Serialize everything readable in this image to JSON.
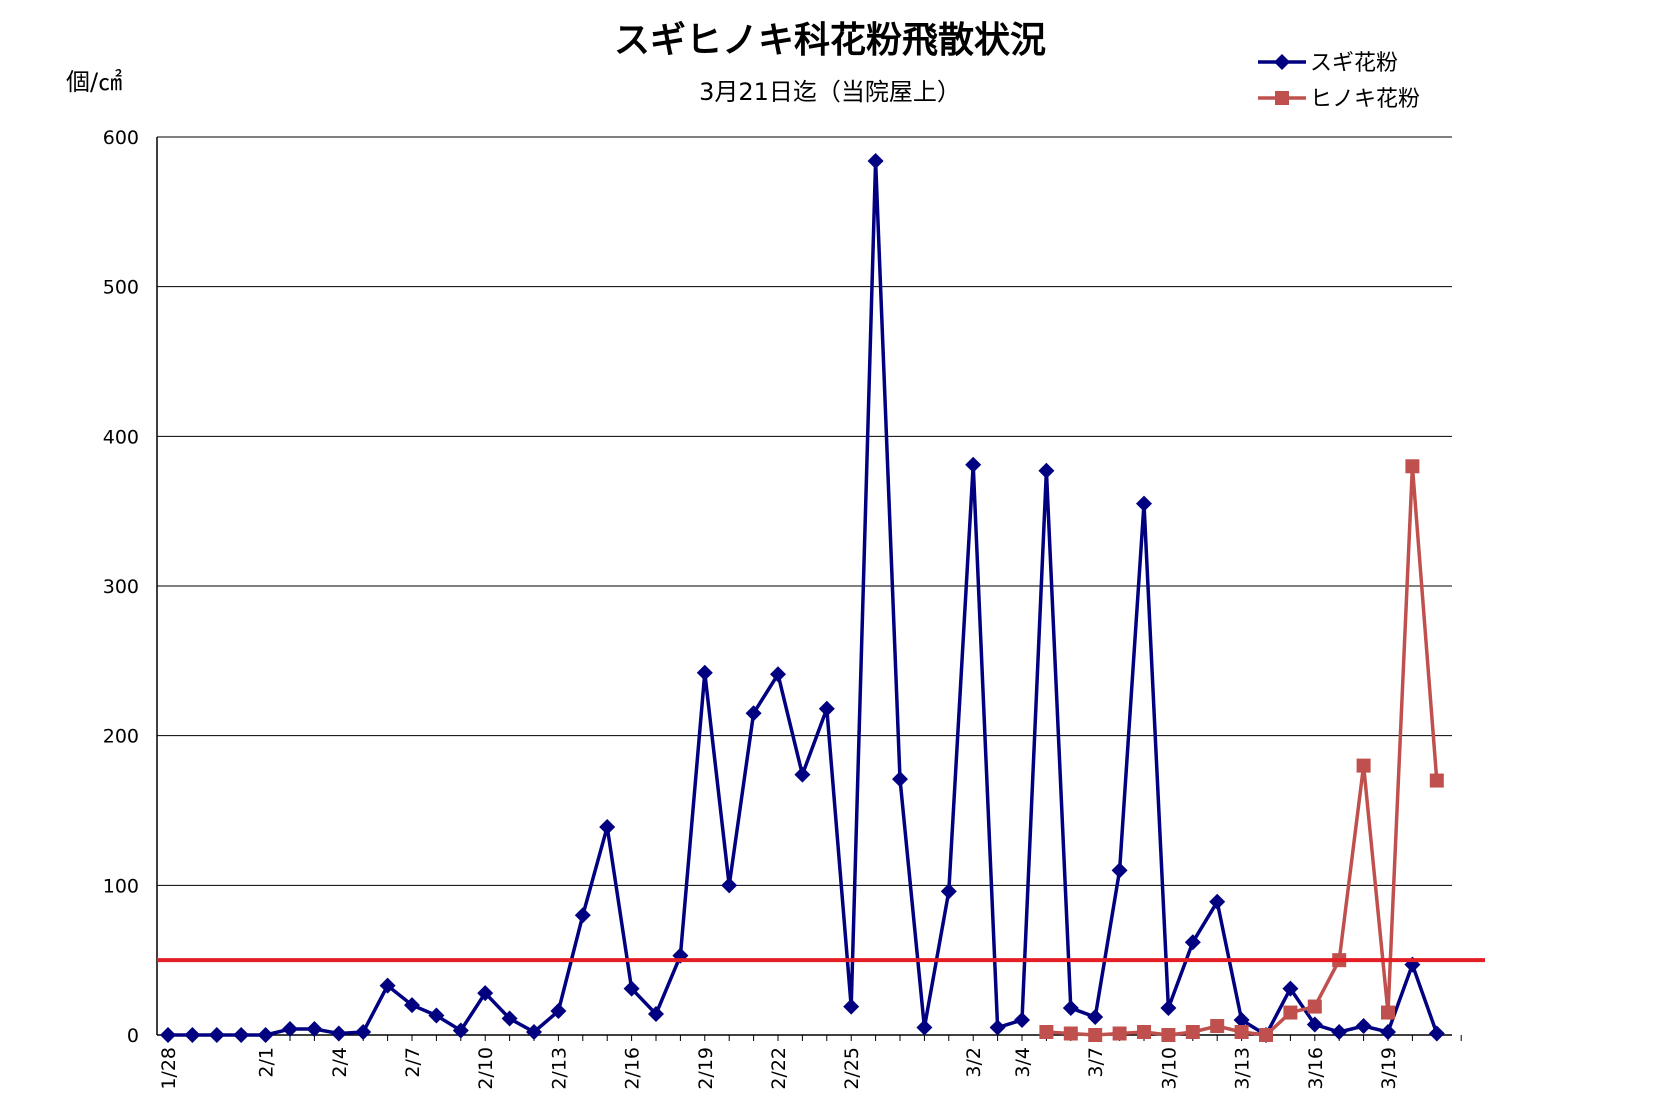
{
  "chart_data": {
    "type": "line",
    "title": "スギヒノキ科花粉飛散状況",
    "subtitle": "3月21日迄（当院屋上）",
    "ylabel": "個/㎠",
    "ylim": [
      0,
      600
    ],
    "yticks": [
      0,
      100,
      200,
      300,
      400,
      500,
      600
    ],
    "xlabels": [
      "1/28",
      "2/1",
      "2/4",
      "2/7",
      "2/10",
      "2/13",
      "2/16",
      "2/19",
      "2/22",
      "2/25",
      "3/2",
      "3/4",
      "3/7",
      "3/10",
      "3/13",
      "3/16",
      "3/19"
    ],
    "grid": true,
    "legend": "top-right",
    "reference_line": {
      "value": 50,
      "color": "#e31e24"
    },
    "series": [
      {
        "name": "スギ花粉",
        "color": "#000080",
        "marker": "diamond",
        "x": [
          "1/28",
          "1/29",
          "1/30",
          "1/31",
          "2/1",
          "2/2",
          "2/3",
          "2/4",
          "2/5",
          "2/6",
          "2/7",
          "2/8",
          "2/9",
          "2/10",
          "2/11",
          "2/12",
          "2/13",
          "2/14",
          "2/15",
          "2/16",
          "2/17",
          "2/18",
          "2/19",
          "2/20",
          "2/21",
          "2/22",
          "2/23",
          "2/24",
          "2/25",
          "2/26",
          "2/27",
          "2/28",
          "3/1",
          "3/2",
          "3/3",
          "3/4",
          "3/5",
          "3/6",
          "3/7",
          "3/8",
          "3/9",
          "3/10",
          "3/11",
          "3/12",
          "3/13",
          "3/14",
          "3/15",
          "3/16",
          "3/17",
          "3/18",
          "3/19",
          "3/20",
          "3/21"
        ],
        "values": [
          0,
          0,
          0,
          0,
          0,
          4,
          4,
          1,
          2,
          33,
          20,
          13,
          3,
          28,
          11,
          2,
          16,
          80,
          139,
          31,
          14,
          53,
          242,
          100,
          215,
          241,
          174,
          218,
          19,
          584,
          171,
          5,
          96,
          381,
          5,
          10,
          377,
          18,
          12,
          110,
          355,
          18,
          62,
          89,
          10,
          0,
          31,
          7,
          2,
          6,
          2,
          47,
          1
        ]
      },
      {
        "name": "ヒノキ花粉",
        "color": "#c0504d",
        "marker": "square",
        "x": [
          "3/5",
          "3/6",
          "3/7",
          "3/8",
          "3/9",
          "3/10",
          "3/11",
          "3/12",
          "3/13",
          "3/14",
          "3/15",
          "3/16",
          "3/17",
          "3/18",
          "3/19",
          "3/20",
          "3/21"
        ],
        "values": [
          2,
          1,
          0,
          1,
          2,
          0,
          2,
          6,
          2,
          0,
          15,
          19,
          50,
          180,
          15,
          380,
          170
        ]
      }
    ]
  }
}
